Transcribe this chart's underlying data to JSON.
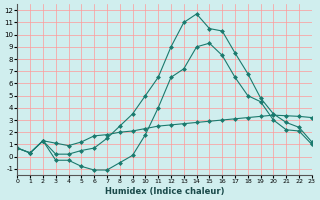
{
  "xlabel": "Humidex (Indice chaleur)",
  "bg_color": "#d0eeee",
  "grid_color": "#ff9999",
  "line_color": "#1a7a6e",
  "xlim": [
    0,
    23
  ],
  "ylim": [
    -1.5,
    12.5
  ],
  "xticks": [
    0,
    1,
    2,
    3,
    4,
    5,
    6,
    7,
    8,
    9,
    10,
    11,
    12,
    13,
    14,
    15,
    16,
    17,
    18,
    19,
    20,
    21,
    22,
    23
  ],
  "yticks": [
    -1,
    0,
    1,
    2,
    3,
    4,
    5,
    6,
    7,
    8,
    9,
    10,
    11,
    12
  ],
  "line1_x": [
    0,
    1,
    2,
    3,
    4,
    5,
    6,
    7,
    8,
    9,
    10,
    11,
    12,
    13,
    14,
    15,
    16,
    17,
    18,
    19,
    20,
    21,
    22,
    23
  ],
  "line1_y": [
    0.7,
    0.3,
    1.3,
    1.1,
    0.9,
    1.2,
    1.7,
    1.8,
    2.0,
    2.1,
    2.3,
    2.5,
    2.6,
    2.7,
    2.8,
    2.9,
    3.0,
    3.1,
    3.2,
    3.3,
    3.4,
    3.35,
    3.3,
    3.2
  ],
  "line2_x": [
    0,
    1,
    2,
    3,
    4,
    5,
    6,
    7,
    8,
    9,
    10,
    11,
    12,
    13,
    14,
    15,
    16,
    17,
    18,
    19,
    20,
    21,
    22,
    23
  ],
  "line2_y": [
    0.7,
    0.3,
    1.3,
    -0.3,
    -0.3,
    -0.8,
    -1.1,
    -1.1,
    -0.5,
    0.1,
    1.8,
    4.0,
    6.5,
    7.2,
    9.0,
    9.3,
    8.3,
    6.5,
    5.0,
    4.5,
    3.0,
    2.2,
    2.1,
    1.0
  ],
  "line3_x": [
    0,
    1,
    2,
    3,
    4,
    5,
    6,
    7,
    8,
    9,
    10,
    11,
    12,
    13,
    14,
    15,
    16,
    17,
    18,
    19,
    20,
    21,
    22,
    23
  ],
  "line3_y": [
    0.7,
    0.3,
    1.3,
    0.2,
    0.2,
    0.5,
    0.7,
    1.5,
    2.5,
    3.5,
    5.0,
    6.5,
    9.0,
    11.0,
    11.7,
    10.5,
    10.3,
    8.5,
    6.8,
    4.8,
    3.5,
    2.8,
    2.4,
    1.2
  ]
}
